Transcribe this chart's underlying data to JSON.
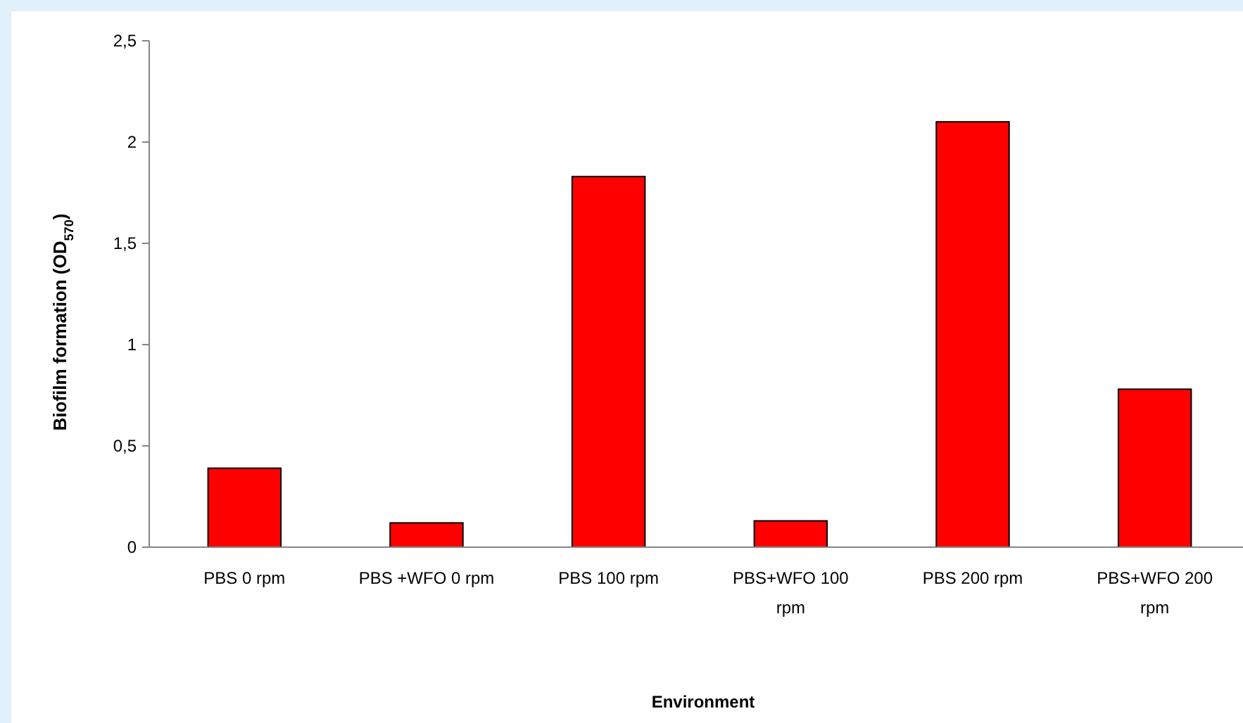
{
  "chart_data": {
    "type": "bar",
    "xlabel": "Environment",
    "ylabel": "Biofilm formation (OD$_{570}$)",
    "categories": [
      "PBS 0 rpm",
      "PBS +WFO 0 rpm",
      "PBS 100 rpm",
      "PBS+WFO 100 rpm",
      "PBS 200 rpm",
      "PBS+WFO 200 rpm"
    ],
    "values": [
      0.39,
      0.12,
      1.83,
      0.13,
      2.1,
      0.78
    ],
    "color": "#ff0000",
    "ylim": [
      0,
      2.5
    ],
    "yticks": [
      0,
      {
        "value": 0.5,
        "label": "0,5"
      },
      1,
      {
        "value": 1.5,
        "label": "1,5"
      },
      2,
      {
        "value": 2.5,
        "label": "2,5"
      }
    ],
    "grid": false
  }
}
